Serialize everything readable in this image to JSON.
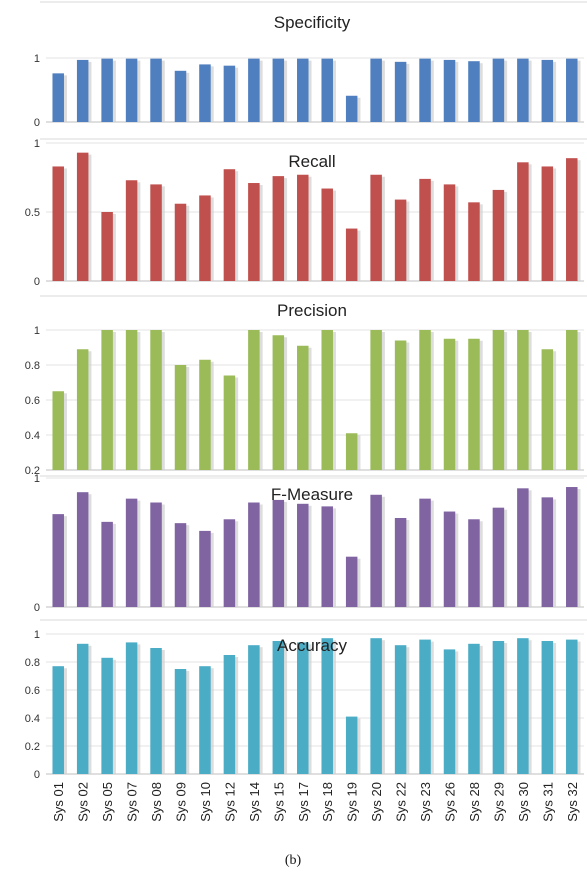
{
  "caption": "(b)",
  "chart_data": [
    {
      "type": "bar",
      "title": "Specificity",
      "color": "#4f7fbf",
      "ylim": [
        0,
        1
      ],
      "yticks": [
        "0",
        "1"
      ],
      "values": [
        0.76,
        0.97,
        0.99,
        0.99,
        0.99,
        0.8,
        0.9,
        0.88,
        0.99,
        0.99,
        0.99,
        0.99,
        0.41,
        0.99,
        0.94,
        0.99,
        0.97,
        0.95,
        0.99,
        0.99,
        0.97,
        0.99
      ]
    },
    {
      "type": "bar",
      "title": "Recall",
      "color": "#c0504d",
      "ylim": [
        0,
        1
      ],
      "yticks": [
        "0",
        "0.5",
        "1"
      ],
      "values": [
        0.83,
        0.93,
        0.5,
        0.73,
        0.7,
        0.56,
        0.62,
        0.81,
        0.71,
        0.76,
        0.77,
        0.67,
        0.38,
        0.77,
        0.59,
        0.74,
        0.7,
        0.57,
        0.66,
        0.86,
        0.83,
        0.89
      ]
    },
    {
      "type": "bar",
      "title": "Precision",
      "color": "#9bbb59",
      "ylim": [
        0.2,
        1
      ],
      "yticks": [
        "0.2",
        "0.4",
        "0.6",
        "0.8",
        "1"
      ],
      "values": [
        0.65,
        0.89,
        1.0,
        1.0,
        1.0,
        0.8,
        0.83,
        0.74,
        1.0,
        0.97,
        0.91,
        1.0,
        0.41,
        1.0,
        0.94,
        1.0,
        0.95,
        0.95,
        1.0,
        1.0,
        0.89,
        1.0
      ]
    },
    {
      "type": "bar",
      "title": "F-Measure",
      "color": "#8064a2",
      "ylim": [
        0,
        1
      ],
      "yticks": [
        "0",
        "1"
      ],
      "values": [
        0.72,
        0.89,
        0.66,
        0.84,
        0.81,
        0.65,
        0.59,
        0.68,
        0.81,
        0.83,
        0.8,
        0.78,
        0.39,
        0.87,
        0.69,
        0.84,
        0.74,
        0.68,
        0.77,
        0.92,
        0.85,
        0.93
      ]
    },
    {
      "type": "bar",
      "title": "Accuracy",
      "color": "#4bacc6",
      "ylim": [
        0,
        1.1
      ],
      "yticks": [
        "0",
        "0.2",
        "0.4",
        "0.6",
        "0.8",
        "1"
      ],
      "xlabels": [
        "Sys 01",
        "Sys 02",
        "Sys 05",
        "Sys 07",
        "Sys 08",
        "Sys 09",
        "Sys 10",
        "Sys 12",
        "Sys 14",
        "Sys 15",
        "Sys 17",
        "Sys 18",
        "Sys 19",
        "Sys 20",
        "Sys 22",
        "Sys 23",
        "Sys 26",
        "Sys 28",
        "Sys 29",
        "Sys 30",
        "Sys 31",
        "Sys 32"
      ],
      "values": [
        0.77,
        0.93,
        0.83,
        0.94,
        0.9,
        0.75,
        0.77,
        0.85,
        0.92,
        0.95,
        0.94,
        0.97,
        0.41,
        0.97,
        0.92,
        0.96,
        0.89,
        0.93,
        0.95,
        0.97,
        0.95,
        0.96
      ]
    }
  ]
}
